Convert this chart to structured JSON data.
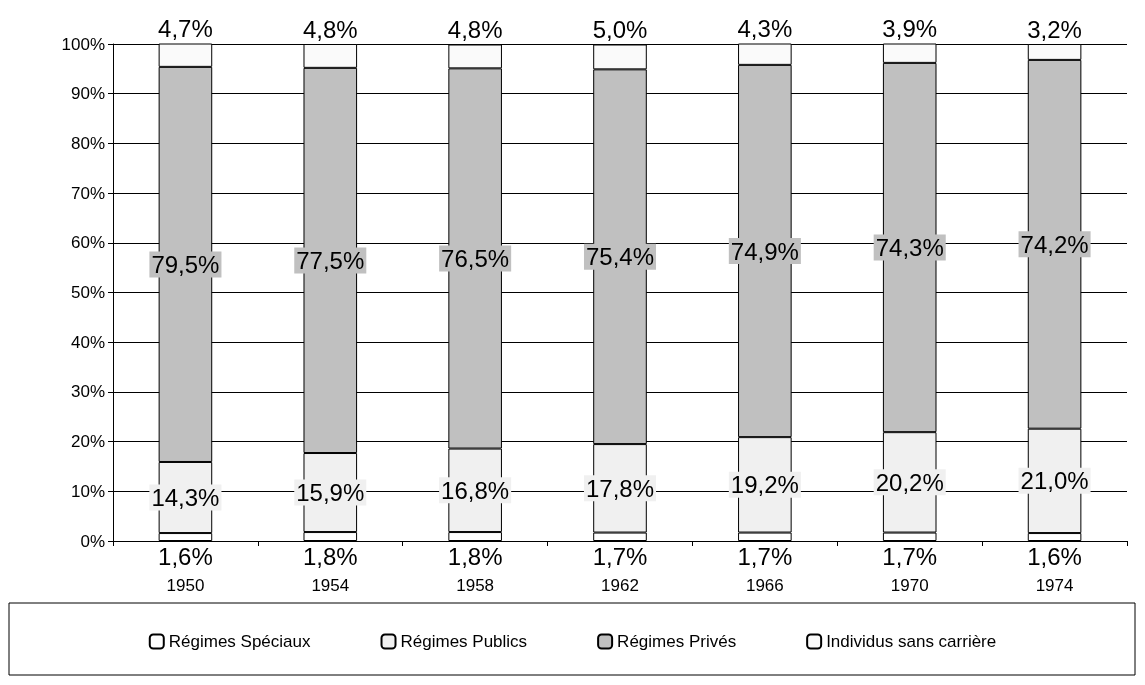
{
  "chart_data": {
    "type": "bar",
    "stacked": true,
    "categories": [
      "1950",
      "1954",
      "1958",
      "1962",
      "1966",
      "1970",
      "1974"
    ],
    "series": [
      {
        "name": "Régimes Spéciaux",
        "color": "#ffffff",
        "values": [
          1.6,
          1.8,
          1.8,
          1.7,
          1.7,
          1.7,
          1.6
        ],
        "value_labels": [
          "1,6%",
          "1,8%",
          "1,8%",
          "1,7%",
          "1,7%",
          "1,7%",
          "1,6%"
        ]
      },
      {
        "name": "Régimes Publics",
        "color": "#f0f0f0",
        "values": [
          14.3,
          15.9,
          16.8,
          17.8,
          19.2,
          20.2,
          21.0
        ],
        "value_labels": [
          "14,3%",
          "15,9%",
          "16,8%",
          "17,8%",
          "19,2%",
          "20,2%",
          "21,0%"
        ]
      },
      {
        "name": "Régimes Privés",
        "color": "#c0c0c0",
        "values": [
          79.5,
          77.5,
          76.5,
          75.4,
          74.9,
          74.3,
          74.2
        ],
        "value_labels": [
          "79,5%",
          "77,5%",
          "76,5%",
          "75,4%",
          "74,9%",
          "74,3%",
          "74,2%"
        ]
      },
      {
        "name": "Individus sans carrière",
        "color": "#fafafa",
        "values": [
          4.7,
          4.8,
          4.8,
          5.0,
          4.3,
          3.9,
          3.2
        ],
        "value_labels": [
          "4,7%",
          "4,8%",
          "4,8%",
          "5,0%",
          "4,3%",
          "3,9%",
          "3,2%"
        ]
      }
    ],
    "ylim": [
      0,
      100
    ],
    "yticks": [
      {
        "value": 0,
        "label": "0%"
      },
      {
        "value": 10,
        "label": "10%"
      },
      {
        "value": 20,
        "label": "20%"
      },
      {
        "value": 30,
        "label": "30%"
      },
      {
        "value": 40,
        "label": "40%"
      },
      {
        "value": 50,
        "label": "50%"
      },
      {
        "value": 60,
        "label": "60%"
      },
      {
        "value": 70,
        "label": "70%"
      },
      {
        "value": 80,
        "label": "80%"
      },
      {
        "value": 90,
        "label": "90%"
      },
      {
        "value": 100,
        "label": "100%"
      }
    ],
    "grid": "y",
    "legend": "bottom"
  }
}
